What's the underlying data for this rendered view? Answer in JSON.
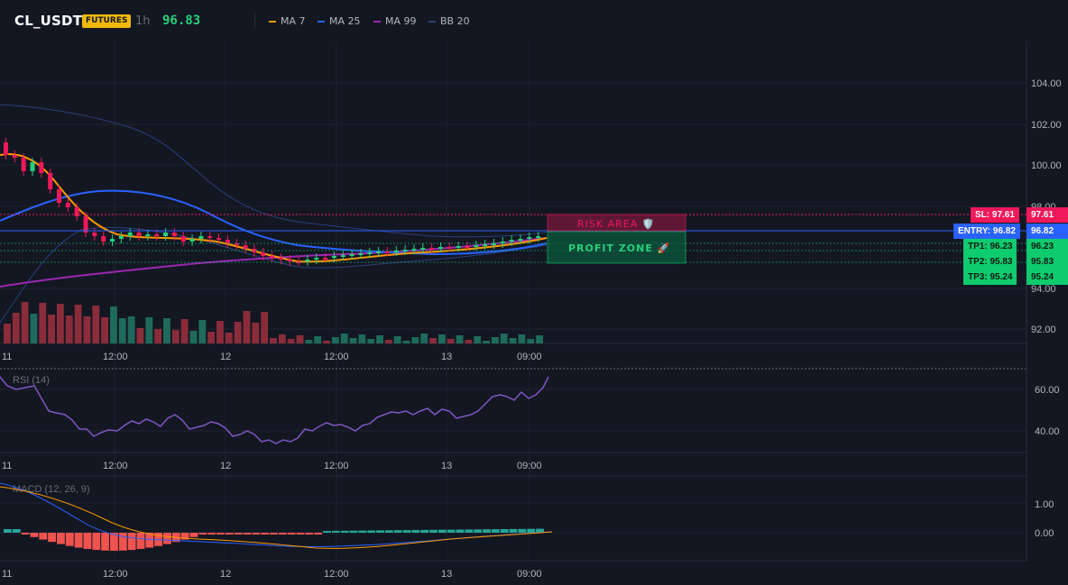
{
  "header": {
    "symbol": "CL_USDT",
    "badge": "FUTURES",
    "timeframe": "1h",
    "price": "96.83",
    "legend": [
      {
        "label": "MA 7",
        "color": "#ff9800"
      },
      {
        "label": "MA 25",
        "color": "#2962ff"
      },
      {
        "label": "MA 99",
        "color": "#9c27b0"
      },
      {
        "label": "BB 20",
        "color": "#2a3f7a"
      }
    ]
  },
  "main_pane": {
    "y_ticks": [
      "104.00",
      "102.00",
      "100.00",
      "98.00",
      "94.00",
      "92.00"
    ],
    "x_ticks": [
      "11",
      "12:00",
      "12",
      "12:00",
      "13",
      "09:00"
    ]
  },
  "zones": {
    "risk_label": "RISK AREA 🛡️",
    "profit_label": "PROFIT ZONE 🚀"
  },
  "levels": [
    {
      "tag": "SL: 97.61",
      "axis": "97.61",
      "color": "#f0185a"
    },
    {
      "tag": "ENTRY: 96.82",
      "axis": "96.82",
      "color": "#2962ff"
    },
    {
      "tag": "TP1: 96.23",
      "axis": "96.23",
      "color": "#0ecb6f"
    },
    {
      "tag": "TP2: 95.83",
      "axis": "95.83",
      "color": "#0ecb6f"
    },
    {
      "tag": "TP3: 95.24",
      "axis": "95.24",
      "color": "#0ecb6f"
    }
  ],
  "rsi_pane": {
    "label": "RSI (14)",
    "y_ticks": [
      "60.00",
      "40.00"
    ],
    "x_ticks": [
      "11",
      "12:00",
      "12",
      "12:00",
      "13",
      "09:00"
    ]
  },
  "macd_pane": {
    "label": "MACD (12, 26, 9)",
    "y_ticks": [
      "1.00",
      "0.00"
    ],
    "x_ticks": [
      "11",
      "12:00",
      "12",
      "12:00",
      "13",
      "09:00"
    ]
  },
  "colors": {
    "up": "#26d07c",
    "down": "#f0185a",
    "vol_up": "#1e6a5c",
    "vol_down": "#8a2c3a",
    "rsi_line": "#7e57c2",
    "macd_line": "#2962ff",
    "signal_line": "#ff9800",
    "hist_up": "#26a69a",
    "hist_down": "#ef5350"
  }
}
